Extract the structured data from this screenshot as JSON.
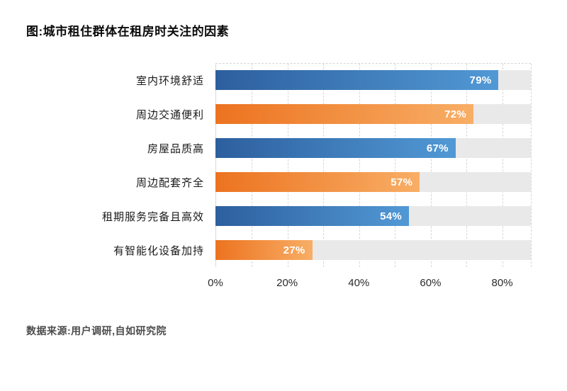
{
  "page": {
    "title": "图:城市租住群体在租房时关注的因素",
    "source": "数据来源:用户调研,自如研究院"
  },
  "chart_data": {
    "type": "bar",
    "orientation": "horizontal",
    "title": "图:城市租住群体在租房时关注的因素",
    "categories": [
      "室内环境舒适",
      "周边交通便利",
      "房屋品质高",
      "周边配套齐全",
      "租期服务完备且高效",
      "有智能化设备加持"
    ],
    "values": [
      79,
      72,
      67,
      57,
      54,
      27
    ],
    "value_labels": [
      "79%",
      "72%",
      "67%",
      "57%",
      "54%",
      "27%"
    ],
    "bar_color_order": [
      "blue",
      "orange",
      "blue",
      "orange",
      "blue",
      "orange"
    ],
    "colors": {
      "blue": [
        "#2d5f9e",
        "#5199d5"
      ],
      "orange": [
        "#ec7320",
        "#f8ae66"
      ],
      "track": "#e9e9e9",
      "grid": "#d6d6d6"
    },
    "xlim": [
      0,
      88
    ],
    "x_ticks": [
      {
        "label": "0%",
        "value": 0
      },
      {
        "label": "20%",
        "value": 20
      },
      {
        "label": "40%",
        "value": 40
      },
      {
        "label": "60%",
        "value": 60
      },
      {
        "label": "80%",
        "value": 80
      }
    ],
    "gridline_values": [
      10,
      20,
      30,
      40,
      50,
      60,
      70,
      80,
      88
    ],
    "grid": "dashed-vertical",
    "legend": "none",
    "source": "数据来源:用户调研,自如研究院"
  }
}
